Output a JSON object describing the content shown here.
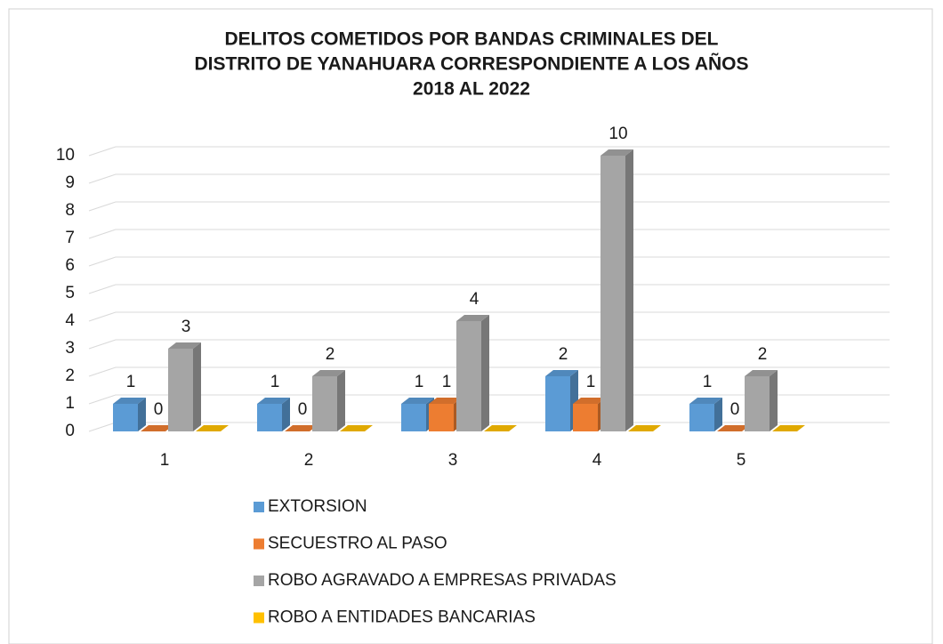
{
  "chart_data": {
    "type": "bar3d",
    "title": [
      "DELITOS COMETIDOS POR BANDAS CRIMINALES DEL",
      "DISTRITO DE YANAHUARA CORRESPONDIENTE A LOS AÑOS",
      "2018 AL 2022"
    ],
    "categories": [
      "1",
      "2",
      "3",
      "4",
      "5"
    ],
    "series": [
      {
        "name": "EXTORSION",
        "color": "#5b9bd5",
        "values": [
          1,
          1,
          1,
          2,
          1
        ],
        "data_labels": true
      },
      {
        "name": "SECUESTRO AL PASO",
        "color": "#ed7d31",
        "values": [
          0,
          0,
          1,
          1,
          0
        ],
        "data_labels": true
      },
      {
        "name": "ROBO AGRAVADO A EMPRESAS PRIVADAS",
        "color": "#a5a5a5",
        "values": [
          3,
          2,
          4,
          10,
          2
        ],
        "data_labels": true
      },
      {
        "name": "ROBO A ENTIDADES BANCARIAS",
        "color": "#ffc000",
        "values": [
          0,
          0,
          0,
          0,
          0
        ],
        "data_labels": false
      }
    ],
    "ylim": [
      0,
      10
    ],
    "yticks": [
      0,
      1,
      2,
      3,
      4,
      5,
      6,
      7,
      8,
      9,
      10
    ],
    "grid": true,
    "legend": "bottom"
  }
}
